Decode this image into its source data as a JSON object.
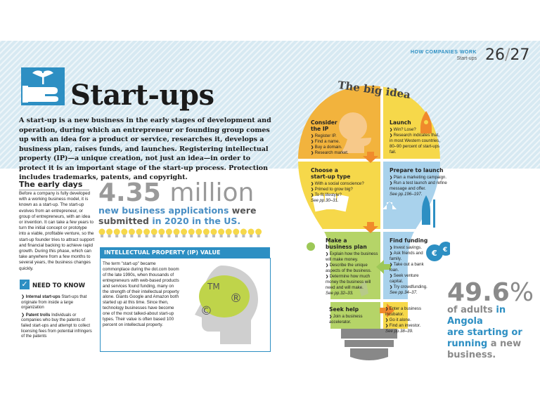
{
  "header": {
    "section": "HOW COMPANIES WORK",
    "subsection": "Start-ups",
    "page_left": "26",
    "page_right": "27"
  },
  "title": "Start-ups",
  "intro": "A start-up is a new business in the early stages of development and operation, during which an entrepreneur or founding group comes up with an idea for a product or service, researches it, develops a business plan, raises funds, and launches. Registering intellectual property (IP)—a unique creation, not just an idea—in order to protect it is an important stage of the start-up process. Protection includes trademarks, patents, and copyright.",
  "early_days": {
    "heading": "The early days",
    "body": "Before a company is fully developed with a working business model, it is known as a start-up. The start-up evolves from an entrepreneur, or group of entrepreneurs, with an idea or invention. It can take a few years to turn the initial concept or prototype into a viable, profitable venture, so the start-up founder tries to attract support and financial backing to achieve rapid growth. During this phase, which can take anywhere from a few months to several years, the business changes quickly."
  },
  "stat1": {
    "number": "4.35",
    "unit": "million",
    "text_a": "new business applications",
    "text_b": "were",
    "text_c": "submitted",
    "text_d": "in 2020 in the US."
  },
  "ip_box": {
    "heading": "INTELLECTUAL PROPERTY (IP) VALUE",
    "body": "The term \"start-up\" became commonplace during the dot.com boom of the late 1990s, when thousands of entrepreneurs with web-based products and services found funding, many on the strength of their intellectual property alone. Giants Google and Amazon both started up at this time. Since then, technology businesses have become one of the most talked-about start-up types. Their value is often based 100 percent on intellectual property.",
    "symbols": [
      "TM",
      "®",
      "©"
    ]
  },
  "need_to_know": {
    "heading": "NEED TO KNOW",
    "items": [
      {
        "term": "Internal start-ups",
        "text": "Start-ups that originate from inside a large organization"
      },
      {
        "term": "Patent trolls",
        "text": "Individuals or companies who buy the patents of failed start-ups and attempt to collect licensing fees from potential infringers of the patents"
      }
    ]
  },
  "big_idea": {
    "heading": "The big idea",
    "consider": {
      "title_a": "Consider",
      "title_b": "the IP",
      "items": [
        "Register IP.",
        "Find a name.",
        "Buy a domain.",
        "Research market."
      ]
    },
    "launch": {
      "title": "Launch",
      "items": [
        "Win? Lose?",
        "Research indicates that, in most Western countries, 80–90 percent of start-ups fail."
      ]
    },
    "choose": {
      "title_a": "Choose a",
      "title_b": "start-up type",
      "items": [
        "With a social conscience?",
        "Primed to grow big?",
        "To fit lifestyle?"
      ],
      "ref": "See pp.30–31."
    },
    "prepare": {
      "title": "Prepare to launch",
      "items": [
        "Plan a marketing campaign.",
        "Run a test launch and refine message and offer."
      ],
      "ref": "See pp.196–197."
    },
    "plan": {
      "title_a": "Make a",
      "title_b": "business plan",
      "items": [
        "Explain how the business will make money.",
        "Describe the unique aspects of the business.",
        "Determine how much money the business will need and will make."
      ],
      "ref": "See pp.32–33."
    },
    "funding": {
      "title": "Find funding",
      "items": [
        "Invest savings.",
        "Ask friends and family.",
        "Take out a bank loan.",
        "Seek venture capital.",
        "Try crowdfunding."
      ],
      "ref": "See pp.34–37.",
      "bag_symbols": [
        "€",
        "€"
      ]
    },
    "help": {
      "title": "Seek help",
      "items": [
        "Join a business accelerator."
      ]
    },
    "help2": {
      "items": [
        "Enter a business incubator.",
        "Go it alone.",
        "Find an investor."
      ],
      "ref": "See pp.38–39."
    }
  },
  "stat2": {
    "number": "49.6",
    "unit": "%",
    "text_a": "of adults",
    "text_b": "in Angola",
    "text_c": "are starting or",
    "text_d": "running",
    "text_e": "a new",
    "text_f": "business."
  },
  "colors": {
    "accent": "#2d8fc3",
    "orange": "#f2b33d",
    "yellow": "#f6d84a",
    "green": "#b5d468",
    "light_blue": "#a9d2ec"
  }
}
